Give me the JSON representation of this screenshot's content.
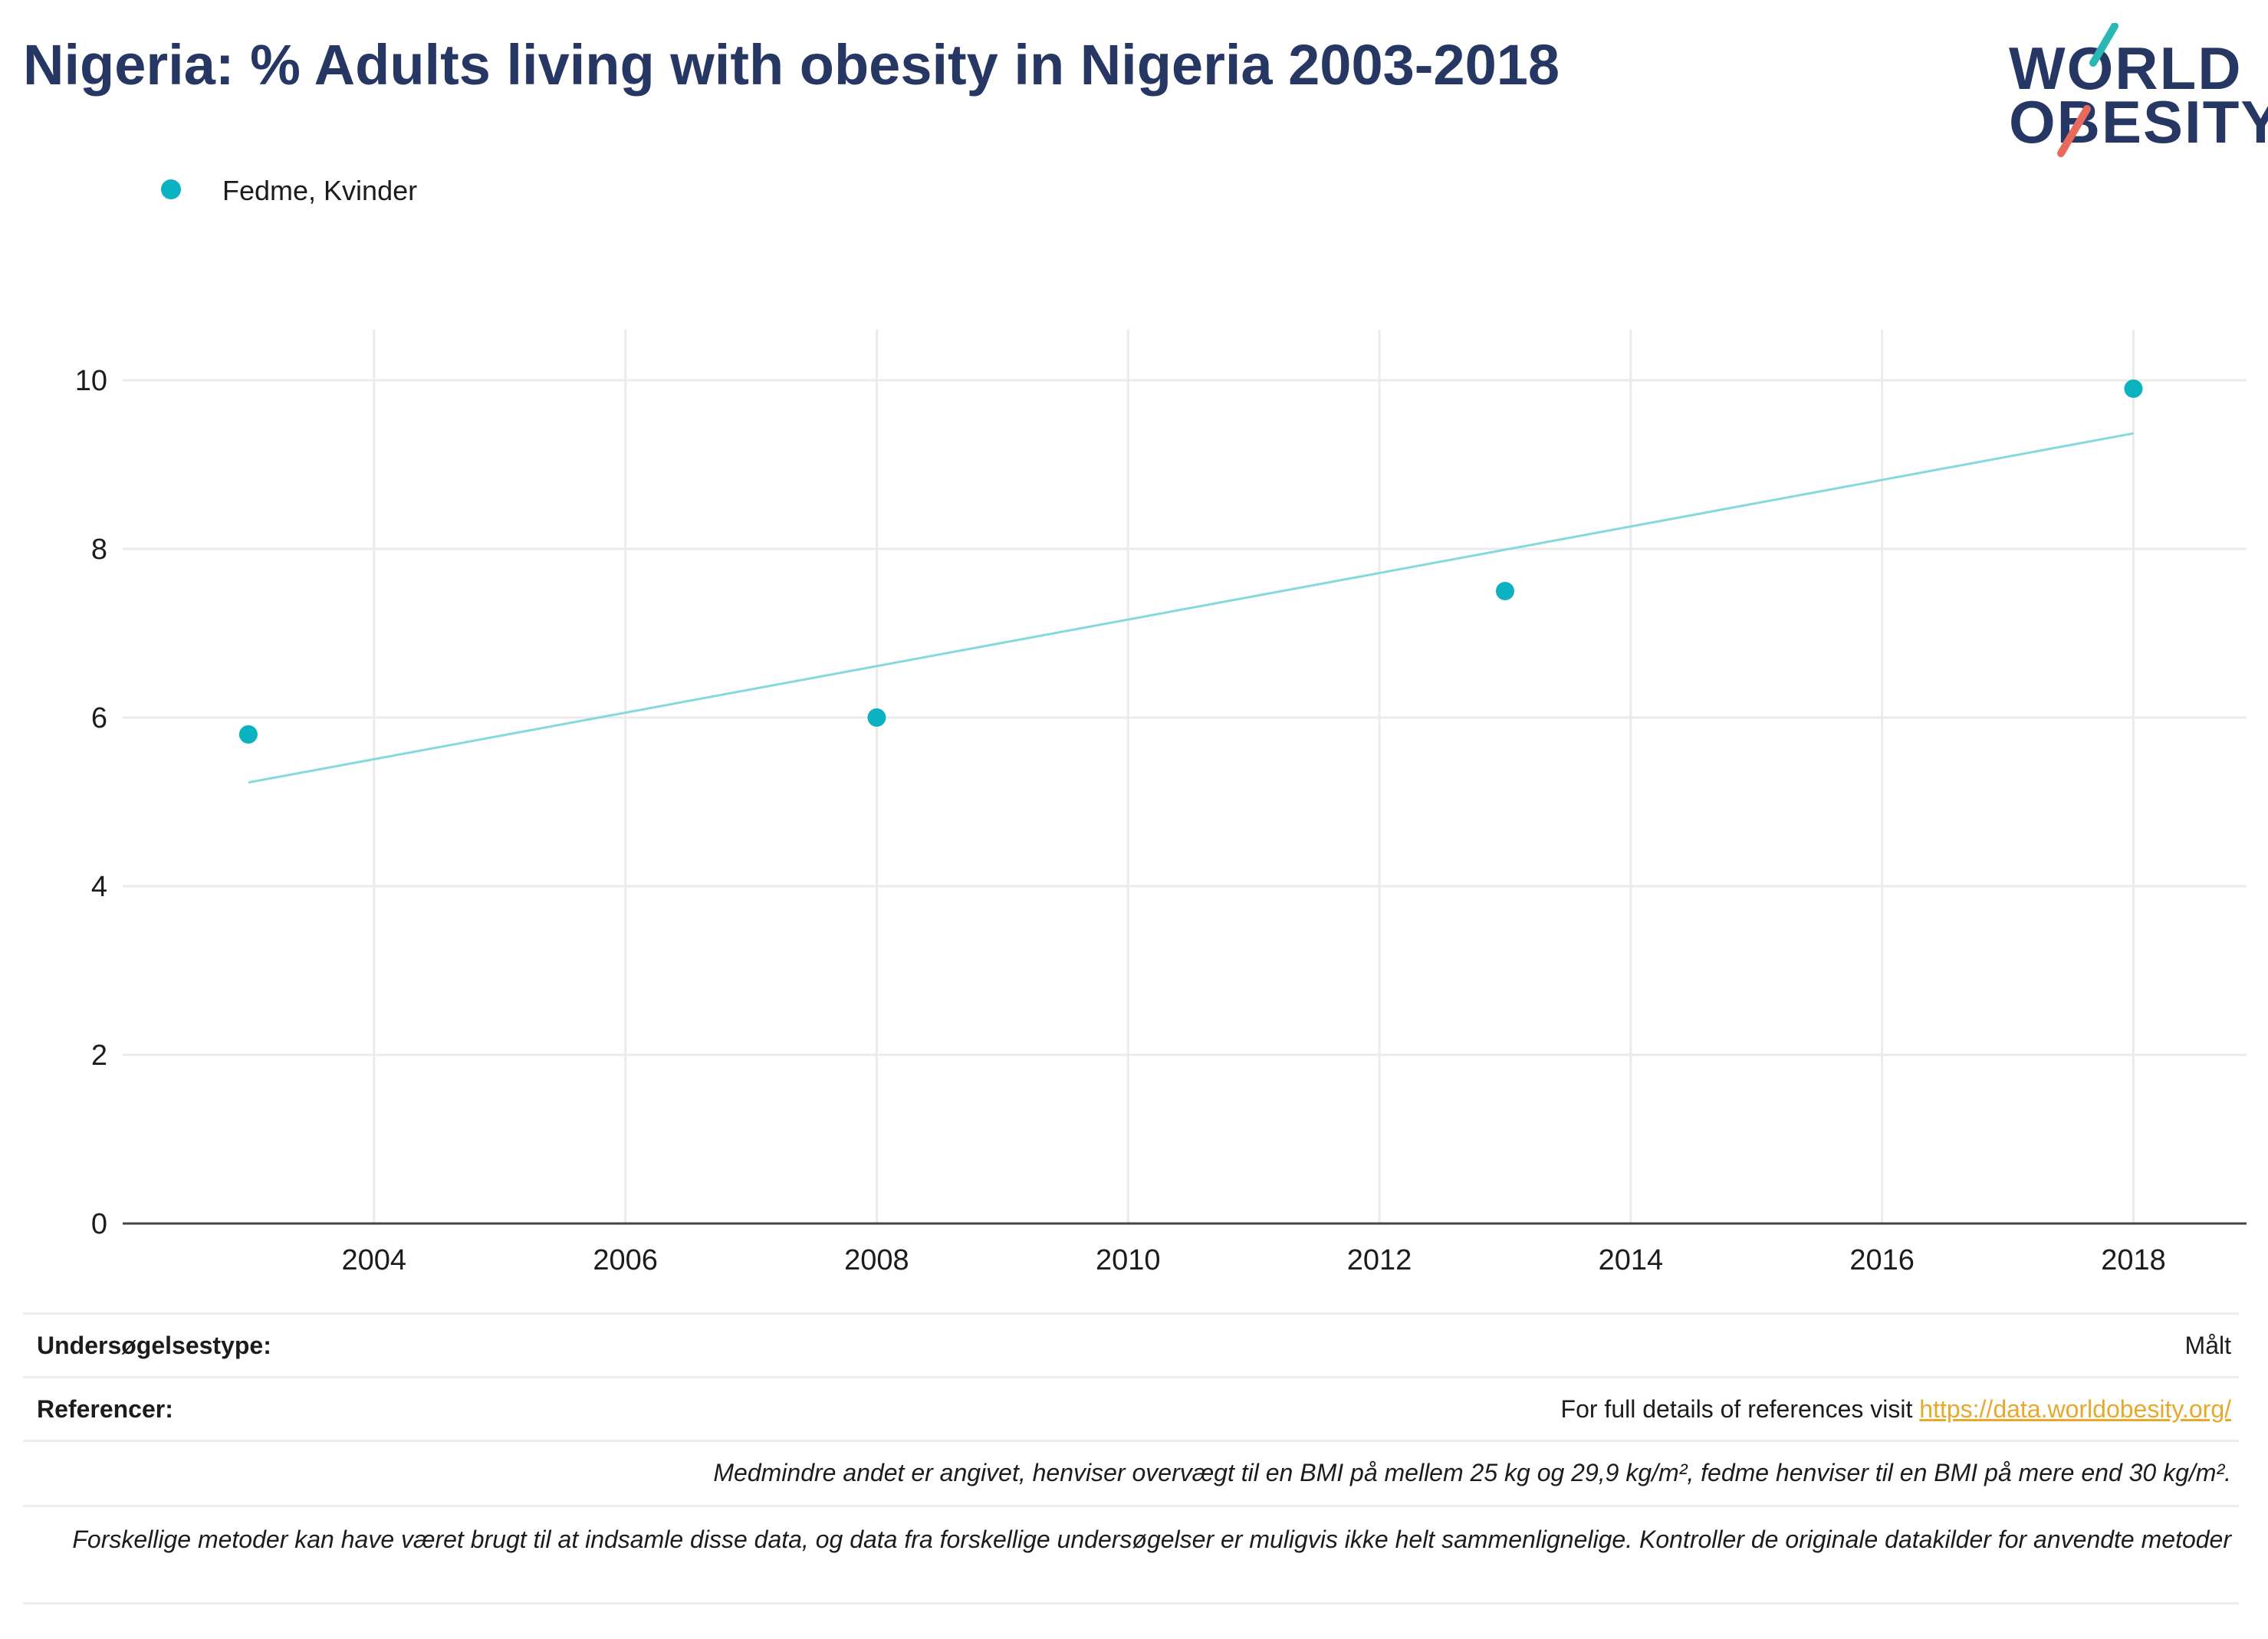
{
  "page": {
    "title": "Nigeria: % Adults living with obesity in Nigeria 2003-2018"
  },
  "logo": {
    "line1": "WORLD",
    "line2": "OBESITY",
    "colors": {
      "navy": "#263763",
      "teal": "#2ab7b4",
      "coral": "#e8695d"
    }
  },
  "legend": {
    "label": "Fedme, Kvinder"
  },
  "chart_data": {
    "type": "scatter",
    "series": [
      {
        "name": "Fedme, Kvinder",
        "color": "#0bb2bf",
        "points": [
          {
            "x": 2003,
            "y": 5.8
          },
          {
            "x": 2008,
            "y": 6.0
          },
          {
            "x": 2013,
            "y": 7.5
          },
          {
            "x": 2018,
            "y": 9.9
          }
        ],
        "trendline": {
          "color": "#84d9dd",
          "start": {
            "x": 2003,
            "y": 5.23
          },
          "end": {
            "x": 2018,
            "y": 9.37
          }
        }
      }
    ],
    "x_ticks": [
      2004,
      2006,
      2008,
      2010,
      2012,
      2014,
      2016,
      2018
    ],
    "y_ticks": [
      0,
      2,
      4,
      6,
      8,
      10
    ],
    "xlim": [
      2002.0,
      2018.9
    ],
    "ylim": [
      0,
      10.6
    ],
    "grid": true
  },
  "footer": {
    "survey_type_label": "Undersøgelsestype:",
    "survey_type_value": "Målt",
    "references_label": "Referencer:",
    "references_text": "For full details of references visit ",
    "references_link": "https://data.worldobesity.org/",
    "note1": "Medmindre andet er angivet, henviser overvægt til en BMI på mellem 25 kg og 29,9 kg/m², fedme henviser til en BMI på mere end 30 kg/m².",
    "note2": "Forskellige metoder kan have været brugt til at indsamle disse data, og data fra forskellige undersøgelser er muligvis ikke helt sammenlignelige. Kontroller de originale datakilder for anvendte metoder"
  }
}
